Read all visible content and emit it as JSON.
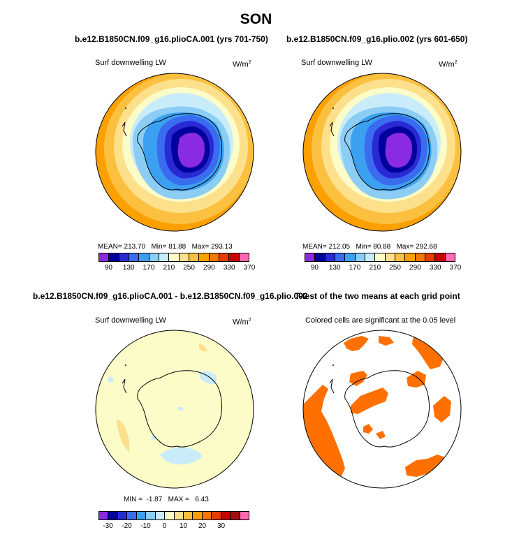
{
  "title": "SON",
  "panels": [
    {
      "title": "b.e12.B1850CN.f09_g16.plioCA.001 (yrs 701-750)",
      "variable": "Surf downwelling LW",
      "units": "W/m",
      "units_sup": "2",
      "stats": {
        "mean_label": "MEAN=",
        "mean": "213.70",
        "min_label": "Min=",
        "min": "81.88",
        "max_label": "Max=",
        "max": "293.13"
      },
      "colorbar_ticks": [
        "90",
        "130",
        "170",
        "210",
        "250",
        "290",
        "330",
        "370"
      ]
    },
    {
      "title": "b.e12.B1850CN.f09_g16.plio.002 (yrs 601-650)",
      "variable": "Surf downwelling LW",
      "units": "W/m",
      "units_sup": "2",
      "stats": {
        "mean_label": "MEAN=",
        "mean": "212.05",
        "min_label": "Min=",
        "min": "80.88",
        "max_label": "Max=",
        "max": "292.68"
      },
      "colorbar_ticks": [
        "90",
        "130",
        "170",
        "210",
        "250",
        "290",
        "330",
        "370"
      ]
    },
    {
      "title": "b.e12.B1850CN.f09_g16.plioCA.001 - b.e12.B1850CN.f09_g16.plio.002",
      "variable": "Surf downwelling LW",
      "units": "W/m",
      "units_sup": "2",
      "stats": {
        "min_label": "MIN =",
        "min": "-1.87",
        "max_label": "MAX =",
        "max": "6.43"
      },
      "colorbar_ticks": [
        "-30",
        "-20",
        "-10",
        "0",
        "10",
        "20",
        "30"
      ]
    },
    {
      "title": "T-test of the two means at each grid point",
      "subtitle": "Colored cells are significant at the 0.05 level"
    }
  ],
  "colors": {
    "abs_scale": [
      "#8a2be2",
      "#00009c",
      "#2a2ad4",
      "#3a6cf0",
      "#3ca0f0",
      "#8ccdf5",
      "#c8ecfa",
      "#fcfcc8",
      "#fce08c",
      "#fcc040",
      "#fca000",
      "#f07800",
      "#e63c00",
      "#c80000",
      "#ff69b4"
    ],
    "diff_scale": [
      "#8a2be2",
      "#00009c",
      "#2a2ad4",
      "#3a6cf0",
      "#3ca0f0",
      "#8ccdf5",
      "#c8ecfa",
      "#fcfcc8",
      "#fce08c",
      "#fcc040",
      "#fca000",
      "#f07800",
      "#e63c00",
      "#c80000",
      "#a01010",
      "#ff69b4"
    ],
    "significant": "#ff7000",
    "diff_background": "#fcfcc8"
  }
}
